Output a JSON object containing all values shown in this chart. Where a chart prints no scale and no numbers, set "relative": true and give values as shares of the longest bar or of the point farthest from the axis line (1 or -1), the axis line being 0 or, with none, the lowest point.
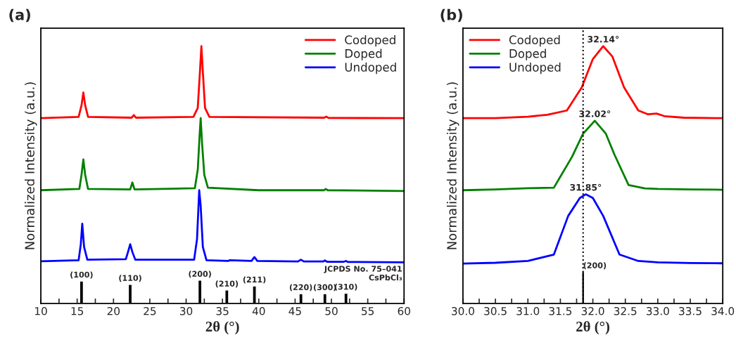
{
  "chart_data": [
    {
      "type": "line",
      "relative": true,
      "xlabel": "2θ (°)",
      "ylabel": "Normalized Intensity (a.u.)",
      "legend": "top right",
      "grid": false,
      "tick_labels": "x",
      "xlim": [
        10,
        60
      ],
      "xticks": [
        10,
        {
          "value": 12.5,
          "label": null
        },
        15,
        {
          "value": 17.5,
          "label": null
        },
        20,
        {
          "value": 22.5,
          "label": null
        },
        25,
        {
          "value": 27.5,
          "label": null
        },
        30,
        {
          "value": 32.5,
          "label": null
        },
        35,
        {
          "value": 37.5,
          "label": null
        },
        40,
        {
          "value": 42.5,
          "label": null
        },
        45,
        {
          "value": 47.5,
          "label": null
        },
        50,
        {
          "value": 52.5,
          "label": null
        },
        55,
        {
          "value": 57.5,
          "label": null
        },
        60
      ],
      "series": [
        {
          "name": "Codoped",
          "color": "#ff0000",
          "x": [
            10,
            15.2,
            15.6,
            15.85,
            16.1,
            16.5,
            22.5,
            22.8,
            23.1,
            31.0,
            31.6,
            31.9,
            32.1,
            32.3,
            32.6,
            33.2,
            49,
            49.3,
            49.6,
            60
          ],
          "values": [
            0.72,
            0.725,
            0.77,
            0.82,
            0.77,
            0.725,
            0.722,
            0.732,
            0.722,
            0.725,
            0.76,
            0.9,
            1.0,
            0.9,
            0.76,
            0.725,
            0.722,
            0.726,
            0.721,
            0.72
          ]
        },
        {
          "name": "Doped",
          "color": "#008000",
          "x": [
            10,
            15.3,
            15.6,
            15.85,
            16.1,
            16.5,
            22.3,
            22.6,
            22.9,
            31.2,
            31.6,
            31.85,
            32.0,
            32.2,
            32.5,
            33.0,
            40,
            49,
            49.2,
            49.5,
            60
          ],
          "values": [
            0.44,
            0.445,
            0.5,
            0.56,
            0.5,
            0.445,
            0.443,
            0.47,
            0.443,
            0.448,
            0.52,
            0.65,
            0.72,
            0.62,
            0.5,
            0.45,
            0.44,
            0.44,
            0.445,
            0.44,
            0.437
          ]
        },
        {
          "name": "Undoped",
          "color": "#0000ff",
          "x": [
            10,
            15.2,
            15.5,
            15.7,
            15.95,
            16.4,
            21.7,
            22.0,
            22.3,
            22.6,
            23.0,
            31.1,
            31.5,
            31.8,
            32.0,
            32.3,
            32.8,
            35.8,
            36,
            39.0,
            39.4,
            39.8,
            45.4,
            45.8,
            46.2,
            48.9,
            49.1,
            49.4,
            51.7,
            52,
            52.3,
            60
          ],
          "values": [
            0.164,
            0.168,
            0.23,
            0.31,
            0.22,
            0.17,
            0.172,
            0.2,
            0.23,
            0.2,
            0.17,
            0.17,
            0.25,
            0.44,
            0.38,
            0.22,
            0.168,
            0.165,
            0.168,
            0.165,
            0.18,
            0.165,
            0.163,
            0.17,
            0.163,
            0.163,
            0.167,
            0.162,
            0.162,
            0.165,
            0.161,
            0.16
          ]
        },
        {
          "type": "bar",
          "color": "#000000",
          "x": [
            15.6,
            22.3,
            31.9,
            35.6,
            39.4,
            45.8,
            49.1,
            52.0
          ],
          "values": [
            0.087,
            0.074,
            0.09,
            0.052,
            0.068,
            0.038,
            0.038,
            0.04
          ]
        }
      ],
      "annotations": [
        "(a)",
        "JCPDS No. 75–041\nCsPbCl₃",
        {
          "text": "(100)",
          "x": 15.6,
          "y": 0.087
        },
        {
          "text": "(110)",
          "x": 22.3,
          "y": 0.074
        },
        {
          "text": "(200)",
          "x": 31.9,
          "y": 0.09
        },
        {
          "text": "(210)",
          "x": 35.6,
          "y": 0.052
        },
        {
          "text": "(211)",
          "x": 39.4,
          "y": 0.068
        },
        {
          "text": "(220)",
          "x": 45.8,
          "y": 0.038
        },
        {
          "text": "(300)",
          "x": 49.1,
          "y": 0.038
        },
        {
          "text": "(310)",
          "x": 52.0,
          "y": 0.04
        }
      ]
    },
    {
      "type": "line",
      "relative": true,
      "xlabel": "2θ (°)",
      "ylabel": "Normalized Intensity (a.u.)",
      "legend": "top left",
      "grid": false,
      "tick_labels": "x",
      "xlim": [
        30.0,
        34.0
      ],
      "xticks": [
        {
          "value": 30.0,
          "label": "30.0"
        },
        {
          "value": 30.25,
          "label": null
        },
        {
          "value": 30.5,
          "label": "30.5"
        },
        {
          "value": 30.75,
          "label": null
        },
        {
          "value": 31.0,
          "label": "31.0"
        },
        {
          "value": 31.25,
          "label": null
        },
        {
          "value": 31.5,
          "label": "31.5"
        },
        {
          "value": 31.75,
          "label": null
        },
        {
          "value": 32.0,
          "label": "32.0"
        },
        {
          "value": 32.25,
          "label": null
        },
        {
          "value": 32.5,
          "label": "32.5"
        },
        {
          "value": 32.75,
          "label": null
        },
        {
          "value": 33.0,
          "label": "33.0"
        },
        {
          "value": 33.25,
          "label": null
        },
        {
          "value": 33.5,
          "label": "33.5"
        },
        {
          "value": 33.75,
          "label": null
        },
        {
          "value": 34.0,
          "label": "34.0"
        }
      ],
      "series": [
        {
          "name": "Codoped",
          "color": "#ff0000",
          "x": [
            30,
            30.5,
            31.0,
            31.3,
            31.6,
            31.83,
            32.0,
            32.16,
            32.3,
            32.48,
            32.7,
            32.85,
            32.98,
            33.1,
            33.4,
            34
          ],
          "values": [
            0.72,
            0.72,
            0.726,
            0.733,
            0.75,
            0.84,
            0.95,
            1.0,
            0.96,
            0.84,
            0.75,
            0.735,
            0.738,
            0.728,
            0.722,
            0.72
          ]
        },
        {
          "name": "Doped",
          "color": "#008000",
          "x": [
            30,
            30.5,
            31.0,
            31.4,
            31.68,
            31.85,
            32.03,
            32.2,
            32.33,
            32.55,
            32.8,
            33.0,
            33.5,
            34
          ],
          "values": [
            0.44,
            0.443,
            0.448,
            0.45,
            0.57,
            0.66,
            0.71,
            0.66,
            0.58,
            0.46,
            0.447,
            0.445,
            0.443,
            0.442
          ]
        },
        {
          "name": "Undoped",
          "color": "#0000ff",
          "x": [
            30,
            30.5,
            31.0,
            31.4,
            31.62,
            31.8,
            31.89,
            32.0,
            32.16,
            32.41,
            32.7,
            33.0,
            33.5,
            34
          ],
          "values": [
            0.155,
            0.158,
            0.165,
            0.19,
            0.34,
            0.41,
            0.424,
            0.41,
            0.34,
            0.19,
            0.165,
            0.16,
            0.157,
            0.156
          ]
        },
        {
          "type": "bar",
          "color": "#000000",
          "x": [
            31.85
          ],
          "values": [
            0.123
          ]
        }
      ],
      "ref_lines": [
        {
          "axis": "x",
          "value": 31.85,
          "color": "#000000",
          "line_style": "dotted"
        }
      ],
      "annotations": [
        "(b)",
        {
          "text": "32.14°",
          "x": 32.16,
          "y": 1.0
        },
        {
          "text": "32.02°",
          "x": 32.03,
          "y": 0.71
        },
        {
          "text": "31.85°",
          "x": 31.89,
          "y": 0.424
        },
        {
          "text": "(200)",
          "x": 31.85,
          "y": 0.123
        }
      ]
    }
  ]
}
